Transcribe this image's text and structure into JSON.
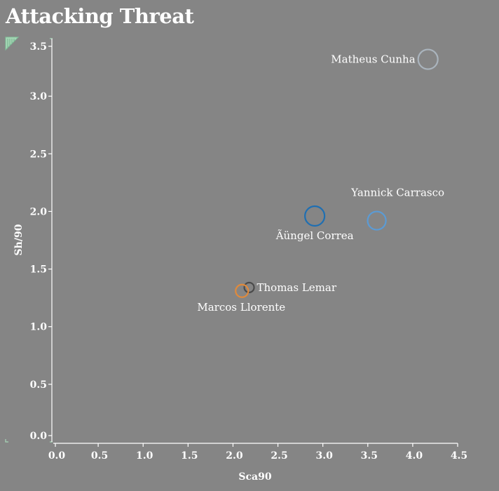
{
  "chart_data": {
    "type": "scatter",
    "title": "Attacking Threat",
    "xlabel": "Sca90",
    "ylabel": "Sh/90",
    "xlim": [
      0,
      4.5
    ],
    "ylim": [
      0,
      3.5
    ],
    "x_ticks": [
      "0.0",
      "0.5",
      "1.0",
      "1.5",
      "2.0",
      "2.5",
      "3.0",
      "3.5",
      "4.0",
      "4.5"
    ],
    "y_ticks": [
      "0.0",
      "0.5",
      "1.0",
      "1.5",
      "2.0",
      "2.5",
      "3.0",
      "3.5"
    ],
    "grid": false,
    "points": [
      {
        "name": "Matheus Cunha",
        "x": 4.17,
        "y": 3.32,
        "color": "#aab4bd",
        "label_pos": "left"
      },
      {
        "name": "Yannick Carrasco",
        "x": 3.6,
        "y": 1.92,
        "color": "#5b9bd5",
        "label_pos": "above"
      },
      {
        "name": "Ãüngel Correa",
        "x": 2.91,
        "y": 1.96,
        "color": "#1f6fb2",
        "label_pos": "below"
      },
      {
        "name": "Thomas Lemar",
        "x": 2.18,
        "y": 1.34,
        "color": "#4a4a4a",
        "label_pos": "right"
      },
      {
        "name": "Marcos Llorente",
        "x": 2.1,
        "y": 1.31,
        "color": "#e08a3c",
        "label_pos": "below"
      }
    ]
  }
}
